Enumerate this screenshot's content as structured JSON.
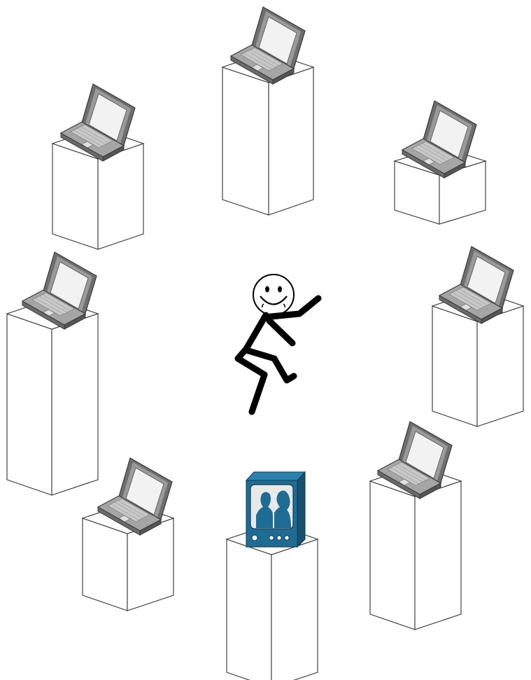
{
  "diagram": {
    "stations": [
      {
        "id": "top-center",
        "device": "laptop"
      },
      {
        "id": "top-left",
        "device": "laptop"
      },
      {
        "id": "top-right",
        "device": "laptop"
      },
      {
        "id": "middle-left",
        "device": "laptop"
      },
      {
        "id": "middle-right",
        "device": "laptop"
      },
      {
        "id": "bottom-left",
        "device": "laptop"
      },
      {
        "id": "bottom-right",
        "device": "laptop"
      },
      {
        "id": "bottom-center",
        "device": "television"
      }
    ],
    "center_figure": "dancing-stick-figure",
    "colors": {
      "pedestal_fill": "#ffffff",
      "pedestal_stroke": "#333333",
      "laptop_body": "#8a8a8a",
      "laptop_screen": "#f4f4f4",
      "tv_body": "#1e6b94",
      "tv_screen": "#e8e8e8",
      "figure_stroke": "#000000"
    }
  }
}
